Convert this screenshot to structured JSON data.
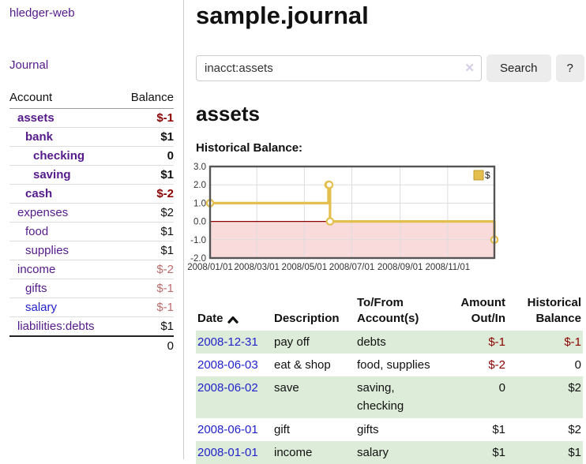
{
  "sidebar": {
    "app_title": "hledger-web",
    "nav": {
      "journal_label": "Journal"
    },
    "accounts_table": {
      "headers": {
        "account": "Account",
        "balance": "Balance"
      },
      "rows": [
        {
          "name": "assets",
          "balance": "$-1",
          "indent": 1,
          "bold": true,
          "name_color": "purple",
          "balance_color": "darkred"
        },
        {
          "name": "bank",
          "balance": "$1",
          "indent": 2,
          "bold": true,
          "name_color": "purple",
          "balance_color": "black"
        },
        {
          "name": "checking",
          "balance": "0",
          "indent": 3,
          "bold": true,
          "name_color": "purple",
          "balance_color": "black"
        },
        {
          "name": "saving",
          "balance": "$1",
          "indent": 3,
          "bold": true,
          "name_color": "purple",
          "balance_color": "black"
        },
        {
          "name": "cash",
          "balance": "$-2",
          "indent": 2,
          "bold": true,
          "name_color": "purple",
          "balance_color": "darkred"
        },
        {
          "name": "expenses",
          "balance": "$2",
          "indent": 1,
          "bold": false,
          "name_color": "purple",
          "balance_color": "black"
        },
        {
          "name": "food",
          "balance": "$1",
          "indent": 2,
          "bold": false,
          "name_color": "purple",
          "balance_color": "black"
        },
        {
          "name": "supplies",
          "balance": "$1",
          "indent": 2,
          "bold": false,
          "name_color": "purple",
          "balance_color": "black"
        },
        {
          "name": "income",
          "balance": "$-2",
          "indent": 1,
          "bold": false,
          "name_color": "purple",
          "balance_color": "rose"
        },
        {
          "name": "gifts",
          "balance": "$-1",
          "indent": 2,
          "bold": false,
          "name_color": "purple",
          "balance_color": "rose"
        },
        {
          "name": "salary",
          "balance": "$-1",
          "indent": 2,
          "bold": false,
          "name_color": "blue",
          "balance_color": "rose"
        },
        {
          "name": "liabilities:debts",
          "balance": "$1",
          "indent": 1,
          "bold": false,
          "name_color": "purple",
          "balance_color": "black"
        }
      ],
      "total": "0"
    }
  },
  "header": {
    "title": "sample.journal"
  },
  "search": {
    "query": "inacct:assets",
    "clear_icon": "✕",
    "search_button_label": "Search",
    "help_button_label": "?"
  },
  "account_view": {
    "title": "assets",
    "chart_label": "Historical Balance:"
  },
  "chart_data": {
    "type": "line",
    "step": true,
    "title": "Historical Balance:",
    "xlim": [
      "2008-01-01",
      "2008-12-31"
    ],
    "ylim": [
      -2,
      3
    ],
    "x_ticks": [
      "2008/01/01",
      "2008/03/01",
      "2008/05/01",
      "2008/07/01",
      "2008/09/01",
      "2008/11/01"
    ],
    "y_ticks": [
      3.0,
      2.0,
      1.0,
      0.0,
      -1.0,
      -2.0
    ],
    "grid": true,
    "legend_position": "top-right",
    "series": [
      {
        "name": "$",
        "color": "#e4bf4d",
        "points": [
          [
            "2008-01-01",
            1
          ],
          [
            "2008-06-01",
            2
          ],
          [
            "2008-06-02",
            2
          ],
          [
            "2008-06-03",
            0
          ],
          [
            "2008-12-31",
            -1
          ]
        ]
      }
    ],
    "negative_region_color": "#fadbdb",
    "zero_line_color": "#8b0000",
    "border_color": "#555555",
    "grid_color": "#dddddd",
    "tick_label_color": "#333333"
  },
  "transactions": {
    "headers": {
      "date": "Date",
      "description": "Description",
      "accounts": "To/From Account(s)",
      "amount": "Amount Out/In",
      "balance": "Historical Balance"
    },
    "rows": [
      {
        "date": "2008-12-31",
        "description": "pay off",
        "accounts": "debts",
        "amount": "$-1",
        "balance": "$-1"
      },
      {
        "date": "2008-06-03",
        "description": "eat & shop",
        "accounts": "food, supplies",
        "amount": "$-2",
        "balance": "0"
      },
      {
        "date": "2008-06-02",
        "description": "save",
        "accounts": "saving, checking",
        "amount": "0",
        "balance": "$2"
      },
      {
        "date": "2008-06-01",
        "description": "gift",
        "accounts": "gifts",
        "amount": "$1",
        "balance": "$2"
      },
      {
        "date": "2008-01-01",
        "description": "income",
        "accounts": "salary",
        "amount": "$1",
        "balance": "$1"
      }
    ]
  }
}
